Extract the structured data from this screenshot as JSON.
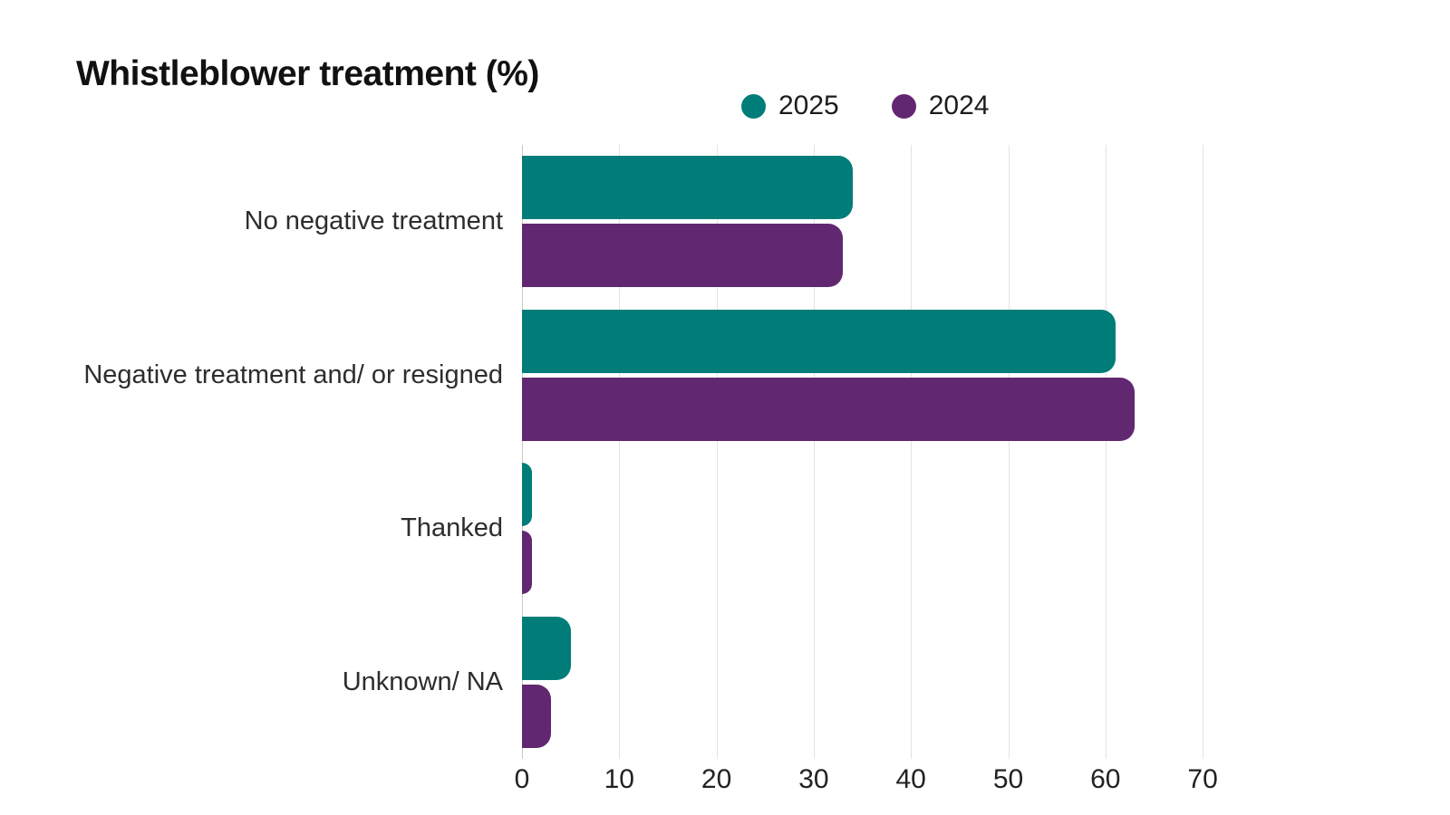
{
  "header": {
    "title": "Whistleblower treatment (%)"
  },
  "colors": {
    "series_2025": "#007d78",
    "series_2024": "#612771",
    "gridline": "#e3e3e3",
    "axis_line": "#c9c9c9"
  },
  "chart_data": {
    "type": "bar",
    "orientation": "horizontal",
    "title": "Whistleblower treatment (%)",
    "categories": [
      "No negative treatment",
      "Negative treatment and/ or resigned",
      "Thanked",
      "Unknown/ NA"
    ],
    "series": [
      {
        "name": "2025",
        "color": "#007d78",
        "values": [
          34,
          61,
          1,
          5
        ]
      },
      {
        "name": "2024",
        "color": "#612771",
        "values": [
          33,
          63,
          1,
          3
        ]
      }
    ],
    "xlabel": "",
    "ylabel": "",
    "xlim": [
      0,
      70
    ],
    "xticks": [
      0,
      10,
      20,
      30,
      40,
      50,
      60,
      70
    ],
    "grid": true,
    "legend_position": "top"
  }
}
